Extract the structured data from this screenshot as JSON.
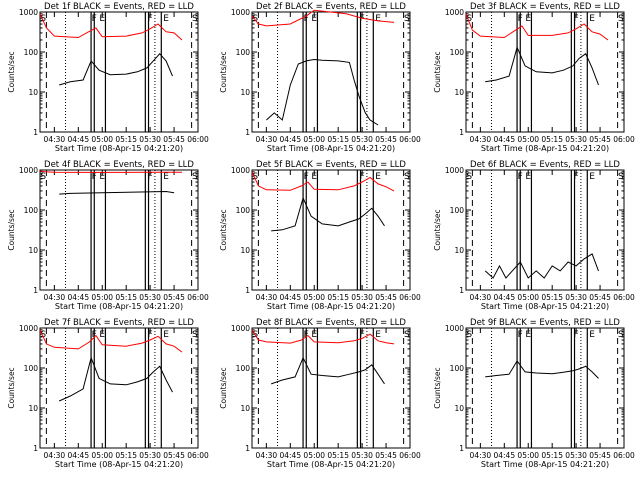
{
  "chart_data": [
    {
      "type": "line",
      "title": "Det 1f BLACK = Events, RED = LLD",
      "xlabel": "Start Time (08-Apr-15 04:21:20)",
      "ylabel": "Counts/sec",
      "yscale": "log",
      "ylim": [
        1,
        1000
      ],
      "xlim": [
        "04:21",
        "06:00"
      ],
      "x_ticks": [
        "04:30",
        "04:45",
        "05:00",
        "05:15",
        "05:30",
        "05:45",
        "06:00"
      ],
      "y_ticks": [
        "1",
        "10",
        "100",
        "1000"
      ],
      "markers": [
        "S",
        "F",
        "E",
        "F",
        "E",
        "S"
      ],
      "series": [
        {
          "color": "#000000",
          "x": [
            "04:33",
            "04:40",
            "04:48",
            "04:53",
            "04:58",
            "05:05",
            "05:15",
            "05:22",
            "05:28",
            "05:32",
            "05:36",
            "05:40",
            "05:44"
          ],
          "values": [
            15,
            18,
            20,
            60,
            35,
            27,
            28,
            32,
            40,
            60,
            90,
            60,
            25
          ]
        },
        {
          "color": "#ff0000",
          "x": [
            "04:21",
            "04:25",
            "04:30",
            "04:45",
            "04:52",
            "04:56",
            "05:00",
            "05:15",
            "05:25",
            "05:30",
            "05:35",
            "05:40",
            "05:45",
            "05:50"
          ],
          "values": [
            900,
            400,
            250,
            230,
            330,
            400,
            240,
            250,
            300,
            380,
            500,
            320,
            300,
            200
          ]
        }
      ]
    },
    {
      "type": "line",
      "title": "Det 2f BLACK = Events, RED = LLD",
      "xlabel": "Start Time (08-Apr-15 04:21:20)",
      "ylabel": "Counts/sec",
      "yscale": "log",
      "ylim": [
        1,
        1000
      ],
      "xlim": [
        "04:21",
        "06:00"
      ],
      "x_ticks": [
        "04:30",
        "04:45",
        "05:00",
        "05:15",
        "05:30",
        "05:45",
        "06:00"
      ],
      "y_ticks": [
        "1",
        "10",
        "100",
        "1000"
      ],
      "markers": [
        "S",
        "F",
        "E",
        "F",
        "E",
        "S"
      ],
      "series": [
        {
          "color": "#000000",
          "x": [
            "04:30",
            "04:35",
            "04:40",
            "04:45",
            "04:50",
            "04:55",
            "05:00",
            "05:05",
            "05:15",
            "05:22",
            "05:25",
            "05:28",
            "05:32",
            "05:35",
            "05:40"
          ],
          "values": [
            2,
            3,
            2,
            15,
            50,
            60,
            65,
            62,
            60,
            55,
            20,
            8,
            3,
            2,
            1.5
          ]
        },
        {
          "color": "#ff0000",
          "x": [
            "04:21",
            "04:25",
            "04:30",
            "04:45",
            "04:55",
            "05:00",
            "05:10",
            "05:20",
            "05:30",
            "05:40",
            "05:50"
          ],
          "values": [
            800,
            500,
            450,
            500,
            800,
            1100,
            1000,
            900,
            700,
            600,
            550
          ]
        }
      ]
    },
    {
      "type": "line",
      "title": "Det 3f BLACK = Events, RED = LLD",
      "xlabel": "Start Time (08-Apr-15 04:21:20)",
      "ylabel": "Counts/sec",
      "yscale": "log",
      "ylim": [
        1,
        1000
      ],
      "xlim": [
        "04:21",
        "06:00"
      ],
      "x_ticks": [
        "04:30",
        "04:45",
        "05:00",
        "05:15",
        "05:30",
        "05:45",
        "06:00"
      ],
      "y_ticks": [
        "1",
        "10",
        "100",
        "1000"
      ],
      "markers": [
        "S",
        "F",
        "E",
        "F",
        "E",
        "S"
      ],
      "series": [
        {
          "color": "#000000",
          "x": [
            "04:33",
            "04:40",
            "04:48",
            "04:53",
            "04:58",
            "05:05",
            "05:15",
            "05:22",
            "05:28",
            "05:32",
            "05:36",
            "05:40",
            "05:44"
          ],
          "values": [
            18,
            20,
            25,
            130,
            45,
            32,
            30,
            35,
            45,
            70,
            90,
            40,
            15
          ]
        },
        {
          "color": "#ff0000",
          "x": [
            "04:21",
            "04:25",
            "04:30",
            "04:45",
            "04:52",
            "04:56",
            "05:00",
            "05:15",
            "05:25",
            "05:30",
            "05:35",
            "05:40",
            "05:45",
            "05:50"
          ],
          "values": [
            900,
            350,
            250,
            230,
            350,
            450,
            260,
            260,
            300,
            380,
            500,
            320,
            280,
            200
          ]
        }
      ]
    },
    {
      "type": "line",
      "title": "Det 4f BLACK = Events, RED = LLD",
      "xlabel": "Start Time (08-Apr-15 04:21:20)",
      "ylabel": "Counts/sec",
      "yscale": "log",
      "ylim": [
        1,
        1000
      ],
      "xlim": [
        "04:21",
        "06:00"
      ],
      "x_ticks": [
        "04:30",
        "04:45",
        "05:00",
        "05:15",
        "05:30",
        "05:45",
        "06:00"
      ],
      "y_ticks": [
        "1",
        "10",
        "100",
        "1000"
      ],
      "markers": [
        "S",
        "F",
        "E",
        "F",
        "E",
        "S"
      ],
      "series": [
        {
          "color": "#000000",
          "x": [
            "04:33",
            "04:40",
            "05:00",
            "05:20",
            "05:40",
            "05:45"
          ],
          "values": [
            250,
            260,
            270,
            280,
            290,
            270
          ]
        },
        {
          "color": "#ff0000",
          "x": [
            "04:21",
            "04:24",
            "04:30",
            "04:45",
            "05:00",
            "05:15",
            "05:30",
            "05:45",
            "05:50"
          ],
          "values": [
            950,
            900,
            880,
            870,
            870,
            870,
            880,
            880,
            880
          ]
        }
      ]
    },
    {
      "type": "line",
      "title": "Det 5f BLACK = Events, RED = LLD",
      "xlabel": "Start Time (08-Apr-15 04:21:20)",
      "ylabel": "Counts/sec",
      "yscale": "log",
      "ylim": [
        1,
        1000
      ],
      "xlim": [
        "04:21",
        "06:00"
      ],
      "x_ticks": [
        "04:30",
        "04:45",
        "05:00",
        "05:15",
        "05:30",
        "05:45",
        "06:00"
      ],
      "y_ticks": [
        "1",
        "10",
        "100",
        "1000"
      ],
      "markers": [
        "S",
        "F",
        "E",
        "F",
        "E",
        "S"
      ],
      "series": [
        {
          "color": "#000000",
          "x": [
            "04:33",
            "04:40",
            "04:48",
            "04:53",
            "04:58",
            "05:05",
            "05:15",
            "05:22",
            "05:28",
            "05:32",
            "05:36",
            "05:40",
            "05:44"
          ],
          "values": [
            30,
            32,
            40,
            200,
            70,
            45,
            40,
            50,
            60,
            80,
            110,
            70,
            40
          ]
        },
        {
          "color": "#ff0000",
          "x": [
            "04:21",
            "04:25",
            "04:30",
            "04:45",
            "04:52",
            "04:56",
            "05:00",
            "05:15",
            "05:25",
            "05:30",
            "05:35",
            "05:40",
            "05:45",
            "05:50"
          ],
          "values": [
            900,
            400,
            320,
            310,
            400,
            500,
            330,
            320,
            400,
            500,
            650,
            450,
            380,
            300
          ]
        }
      ]
    },
    {
      "type": "line",
      "title": "Det 6f BLACK = Events, RED = LLD",
      "xlabel": "Start Time (08-Apr-15 04:21:20)",
      "ylabel": "Counts/sec",
      "yscale": "log",
      "ylim": [
        1,
        1000
      ],
      "xlim": [
        "04:21",
        "06:00"
      ],
      "x_ticks": [
        "04:30",
        "04:45",
        "05:00",
        "05:15",
        "05:30",
        "05:45",
        "06:00"
      ],
      "y_ticks": [
        "1",
        "10",
        "100",
        "1000"
      ],
      "markers": [
        "S",
        "F",
        "E",
        "F",
        "E",
        "S"
      ],
      "series": [
        {
          "color": "#000000",
          "x": [
            "04:33",
            "04:38",
            "04:42",
            "04:46",
            "04:50",
            "04:55",
            "05:00",
            "05:05",
            "05:10",
            "05:15",
            "05:20",
            "05:25",
            "05:30",
            "05:35",
            "05:40",
            "05:44"
          ],
          "values": [
            3,
            2,
            4,
            2,
            3,
            5,
            2,
            3,
            2,
            4,
            3,
            5,
            4,
            6,
            8,
            3
          ]
        }
      ]
    },
    {
      "type": "line",
      "title": "Det 7f BLACK = Events, RED = LLD",
      "xlabel": "Start Time (08-Apr-15 04:21:20)",
      "ylabel": "Counts/sec",
      "yscale": "log",
      "ylim": [
        1,
        1000
      ],
      "xlim": [
        "04:21",
        "06:00"
      ],
      "x_ticks": [
        "04:30",
        "04:45",
        "05:00",
        "05:15",
        "05:30",
        "05:45",
        "06:00"
      ],
      "y_ticks": [
        "1",
        "10",
        "100",
        "1000"
      ],
      "markers": [
        "S",
        "F",
        "E",
        "F",
        "E",
        "S"
      ],
      "series": [
        {
          "color": "#000000",
          "x": [
            "04:33",
            "04:40",
            "04:48",
            "04:53",
            "04:58",
            "05:05",
            "05:15",
            "05:22",
            "05:28",
            "05:32",
            "05:36",
            "05:40",
            "05:44"
          ],
          "values": [
            15,
            20,
            30,
            180,
            55,
            40,
            38,
            45,
            55,
            80,
            110,
            50,
            25
          ]
        },
        {
          "color": "#ff0000",
          "x": [
            "04:21",
            "04:25",
            "04:30",
            "04:45",
            "04:52",
            "04:56",
            "05:00",
            "05:15",
            "05:25",
            "05:30",
            "05:35",
            "05:40",
            "05:45",
            "05:50"
          ],
          "values": [
            900,
            400,
            330,
            300,
            450,
            650,
            380,
            350,
            420,
            500,
            620,
            400,
            350,
            250
          ]
        }
      ]
    },
    {
      "type": "line",
      "title": "Det 8f BLACK = Events, RED = LLD",
      "xlabel": "Start Time (08-Apr-15 04:21:20)",
      "ylabel": "Counts/sec",
      "yscale": "log",
      "ylim": [
        1,
        1000
      ],
      "xlim": [
        "04:21",
        "06:00"
      ],
      "x_ticks": [
        "04:30",
        "04:45",
        "05:00",
        "05:15",
        "05:30",
        "05:45",
        "06:00"
      ],
      "y_ticks": [
        "1",
        "10",
        "100",
        "1000"
      ],
      "markers": [
        "S",
        "F",
        "E",
        "F",
        "E",
        "S"
      ],
      "series": [
        {
          "color": "#000000",
          "x": [
            "04:33",
            "04:40",
            "04:48",
            "04:53",
            "04:58",
            "05:05",
            "05:15",
            "05:22",
            "05:28",
            "05:32",
            "05:36",
            "05:40",
            "05:44"
          ],
          "values": [
            40,
            50,
            60,
            180,
            70,
            65,
            60,
            70,
            80,
            90,
            120,
            70,
            40
          ]
        },
        {
          "color": "#ff0000",
          "x": [
            "04:21",
            "04:25",
            "04:30",
            "04:45",
            "04:52",
            "04:56",
            "05:00",
            "05:15",
            "05:25",
            "05:30",
            "05:35",
            "05:40",
            "05:45",
            "05:50"
          ],
          "values": [
            900,
            500,
            450,
            420,
            500,
            650,
            450,
            430,
            480,
            550,
            700,
            480,
            430,
            400
          ]
        }
      ]
    },
    {
      "type": "line",
      "title": "Det 9f BLACK = Events, RED = LLD",
      "xlabel": "Start Time (08-Apr-15 04:21:20)",
      "ylabel": "Counts/sec",
      "yscale": "log",
      "ylim": [
        1,
        1000
      ],
      "xlim": [
        "04:21",
        "06:00"
      ],
      "x_ticks": [
        "04:30",
        "04:45",
        "05:00",
        "05:15",
        "05:30",
        "05:45",
        "06:00"
      ],
      "y_ticks": [
        "1",
        "10",
        "100",
        "1000"
      ],
      "markers": [
        "S",
        "F",
        "E",
        "F",
        "E",
        "S"
      ],
      "series": [
        {
          "color": "#000000",
          "x": [
            "04:33",
            "04:40",
            "04:48",
            "04:53",
            "04:58",
            "05:05",
            "05:15",
            "05:22",
            "05:28",
            "05:32",
            "05:36",
            "05:40",
            "05:44"
          ],
          "values": [
            60,
            65,
            70,
            150,
            80,
            75,
            72,
            78,
            85,
            95,
            110,
            80,
            55
          ]
        }
      ]
    }
  ]
}
